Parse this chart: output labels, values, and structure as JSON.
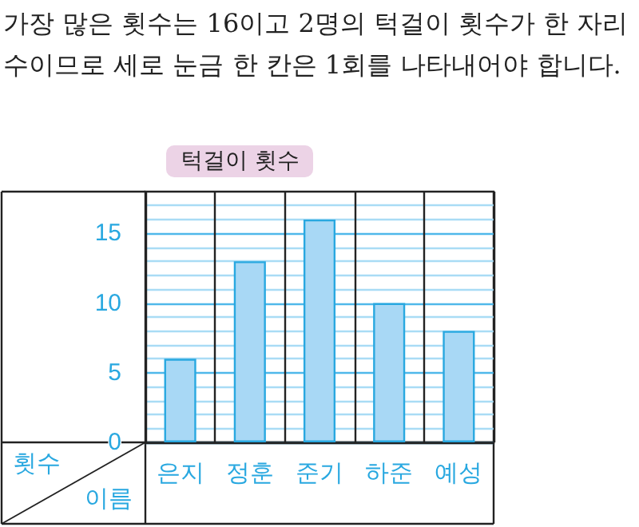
{
  "chart_data": {
    "type": "bar",
    "title": "턱걸이 횟수",
    "xlabel": "이름",
    "ylabel": "횟수",
    "annotations": [
      "가장 많은 횟수는 16이고 2명의 턱걸이 횟수가 한 자리 수이므로 세로 눈금 한 칸은 1회를 나타내어야 합니다."
    ],
    "categories": [
      "은지",
      "정훈",
      "준기",
      "하준",
      "예성"
    ],
    "values": [
      6,
      13,
      16,
      10,
      8
    ],
    "color": "#a8d8f5",
    "ylim": [
      0,
      18
    ],
    "yticks": [
      0,
      {
        "value": 1,
        "label": null
      },
      {
        "value": 2,
        "label": null
      },
      {
        "value": 3,
        "label": null
      },
      {
        "value": 4,
        "label": null
      },
      5,
      {
        "value": 6,
        "label": null
      },
      {
        "value": 7,
        "label": null
      },
      {
        "value": 8,
        "label": null
      },
      {
        "value": 9,
        "label": null
      },
      10,
      {
        "value": 11,
        "label": null
      },
      {
        "value": 12,
        "label": null
      },
      {
        "value": 13,
        "label": null
      },
      {
        "value": 14,
        "label": null
      },
      15,
      {
        "value": 16,
        "label": null
      },
      {
        "value": 17,
        "label": null
      }
    ],
    "grid": true
  }
}
